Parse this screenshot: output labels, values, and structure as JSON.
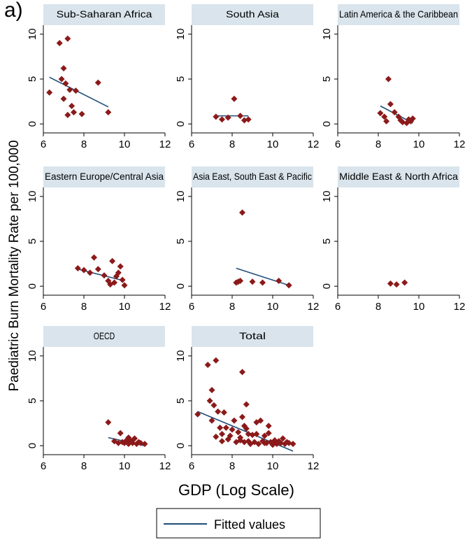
{
  "figure_label": "a)",
  "chart_data": {
    "type": "scatter",
    "layout": "small-multiples-3x3",
    "ylabel": "Paediatric Burn Mortality Rate per 100,000",
    "xlabel": "GDP (Log Scale)",
    "xlim": [
      6,
      12
    ],
    "ylim": [
      -1,
      11
    ],
    "xticks": [
      "6",
      "8",
      "10",
      "12"
    ],
    "yticks": [
      "0",
      "5",
      "10"
    ],
    "grid": false,
    "marker_color": "#8b1a1a",
    "fit_color": "#1f4e79",
    "header_color": "#d9e4ec",
    "legend": {
      "placement": "bottom-center",
      "label": "Fitted values"
    },
    "panels": [
      {
        "title": "Sub-Saharan Africa",
        "points": [
          [
            6.3,
            3.5
          ],
          [
            6.8,
            9.0
          ],
          [
            7.0,
            6.2
          ],
          [
            7.2,
            9.5
          ],
          [
            6.9,
            5.0
          ],
          [
            7.1,
            4.5
          ],
          [
            7.3,
            3.8
          ],
          [
            7.0,
            2.8
          ],
          [
            7.4,
            2.0
          ],
          [
            7.6,
            3.7
          ],
          [
            7.2,
            1.0
          ],
          [
            7.5,
            1.3
          ],
          [
            7.9,
            1.1
          ],
          [
            8.7,
            4.6
          ],
          [
            9.2,
            1.3
          ]
        ],
        "fit": [
          [
            6.3,
            5.2
          ],
          [
            9.2,
            1.9
          ]
        ]
      },
      {
        "title": "South Asia",
        "points": [
          [
            7.2,
            0.8
          ],
          [
            7.5,
            0.5
          ],
          [
            7.8,
            0.7
          ],
          [
            8.1,
            2.8
          ],
          [
            8.4,
            0.9
          ],
          [
            8.6,
            0.4
          ],
          [
            8.8,
            0.5
          ]
        ],
        "fit": [
          [
            7.2,
            0.9
          ],
          [
            8.8,
            0.9
          ]
        ]
      },
      {
        "title": "Latin America & the Caribbean",
        "points": [
          [
            8.1,
            1.2
          ],
          [
            8.3,
            0.8
          ],
          [
            8.4,
            0.3
          ],
          [
            8.5,
            5.0
          ],
          [
            8.6,
            2.2
          ],
          [
            8.8,
            1.3
          ],
          [
            9.0,
            0.8
          ],
          [
            9.1,
            0.4
          ],
          [
            9.2,
            0.2
          ],
          [
            9.4,
            0.1
          ],
          [
            9.5,
            0.5
          ],
          [
            9.6,
            0.3
          ],
          [
            9.7,
            0.6
          ]
        ],
        "fit": [
          [
            8.1,
            2.0
          ],
          [
            9.7,
            0.1
          ]
        ]
      },
      {
        "title": "Eastern Europe/Central Asia",
        "points": [
          [
            7.7,
            2.0
          ],
          [
            8.0,
            1.8
          ],
          [
            8.3,
            1.5
          ],
          [
            8.5,
            3.2
          ],
          [
            8.7,
            1.9
          ],
          [
            9.0,
            1.2
          ],
          [
            9.2,
            0.6
          ],
          [
            9.3,
            0.2
          ],
          [
            9.4,
            2.8
          ],
          [
            9.5,
            0.4
          ],
          [
            9.6,
            1.1
          ],
          [
            9.8,
            2.2
          ],
          [
            9.9,
            0.7
          ],
          [
            10.0,
            0.1
          ],
          [
            9.7,
            1.5
          ]
        ],
        "fit": [
          [
            7.7,
            1.9
          ],
          [
            10.0,
            0.6
          ]
        ]
      },
      {
        "title": "Asia East, South East & Pacific",
        "points": [
          [
            8.2,
            0.4
          ],
          [
            8.3,
            0.5
          ],
          [
            8.4,
            0.6
          ],
          [
            8.5,
            8.2
          ],
          [
            9.0,
            0.5
          ],
          [
            9.5,
            0.4
          ],
          [
            10.3,
            0.6
          ],
          [
            10.8,
            0.1
          ]
        ],
        "fit": [
          [
            8.2,
            2.0
          ],
          [
            10.8,
            0.1
          ]
        ]
      },
      {
        "title": "Middle East & North Africa",
        "points": [
          [
            8.6,
            0.3
          ],
          [
            8.9,
            0.2
          ],
          [
            9.3,
            0.4
          ]
        ],
        "fit": []
      },
      {
        "title": "OECD",
        "points": [
          [
            9.2,
            2.6
          ],
          [
            9.5,
            0.5
          ],
          [
            9.7,
            0.3
          ],
          [
            9.8,
            1.4
          ],
          [
            9.9,
            0.4
          ],
          [
            10.0,
            0.3
          ],
          [
            10.1,
            0.6
          ],
          [
            10.2,
            0.2
          ],
          [
            10.3,
            0.5
          ],
          [
            10.4,
            0.3
          ],
          [
            10.5,
            0.8
          ],
          [
            10.6,
            0.2
          ],
          [
            10.7,
            0.4
          ],
          [
            10.8,
            0.3
          ],
          [
            11.0,
            0.2
          ],
          [
            10.2,
            0.9
          ],
          [
            10.4,
            0.6
          ]
        ],
        "fit": [
          [
            9.2,
            0.9
          ],
          [
            11.0,
            0.0
          ]
        ]
      },
      {
        "title": "Total",
        "points": [
          [
            6.3,
            3.5
          ],
          [
            6.8,
            9.0
          ],
          [
            7.0,
            6.2
          ],
          [
            7.2,
            9.5
          ],
          [
            6.9,
            5.0
          ],
          [
            7.1,
            4.5
          ],
          [
            7.3,
            3.8
          ],
          [
            7.0,
            2.8
          ],
          [
            7.4,
            2.0
          ],
          [
            7.6,
            3.7
          ],
          [
            7.2,
            1.0
          ],
          [
            7.5,
            1.3
          ],
          [
            7.9,
            1.1
          ],
          [
            8.7,
            4.6
          ],
          [
            9.2,
            1.3
          ],
          [
            7.5,
            0.5
          ],
          [
            7.8,
            0.7
          ],
          [
            8.1,
            2.8
          ],
          [
            8.4,
            0.9
          ],
          [
            8.6,
            0.4
          ],
          [
            8.8,
            0.5
          ],
          [
            8.5,
            8.2
          ],
          [
            8.5,
            3.2
          ],
          [
            8.7,
            1.9
          ],
          [
            9.0,
            1.2
          ],
          [
            9.4,
            2.8
          ],
          [
            9.6,
            1.1
          ],
          [
            9.8,
            2.2
          ],
          [
            8.3,
            1.5
          ],
          [
            8.0,
            1.8
          ],
          [
            9.1,
            0.4
          ],
          [
            9.3,
            0.2
          ],
          [
            9.5,
            0.5
          ],
          [
            9.7,
            0.3
          ],
          [
            9.8,
            1.4
          ],
          [
            9.9,
            0.4
          ],
          [
            10.0,
            0.3
          ],
          [
            10.1,
            0.6
          ],
          [
            10.2,
            0.2
          ],
          [
            10.3,
            0.5
          ],
          [
            10.4,
            0.3
          ],
          [
            10.5,
            0.8
          ],
          [
            10.6,
            0.2
          ],
          [
            10.7,
            0.4
          ],
          [
            10.8,
            0.3
          ],
          [
            11.0,
            0.2
          ],
          [
            8.2,
            0.4
          ],
          [
            8.9,
            0.2
          ],
          [
            9.2,
            2.6
          ],
          [
            10.0,
            0.1
          ],
          [
            8.6,
            2.2
          ],
          [
            8.8,
            1.3
          ],
          [
            7.7,
            2.0
          ],
          [
            8.4,
            0.6
          ],
          [
            9.6,
            0.3
          ]
        ],
        "fit": [
          [
            6.3,
            3.8
          ],
          [
            11.0,
            -0.6
          ]
        ]
      }
    ]
  }
}
